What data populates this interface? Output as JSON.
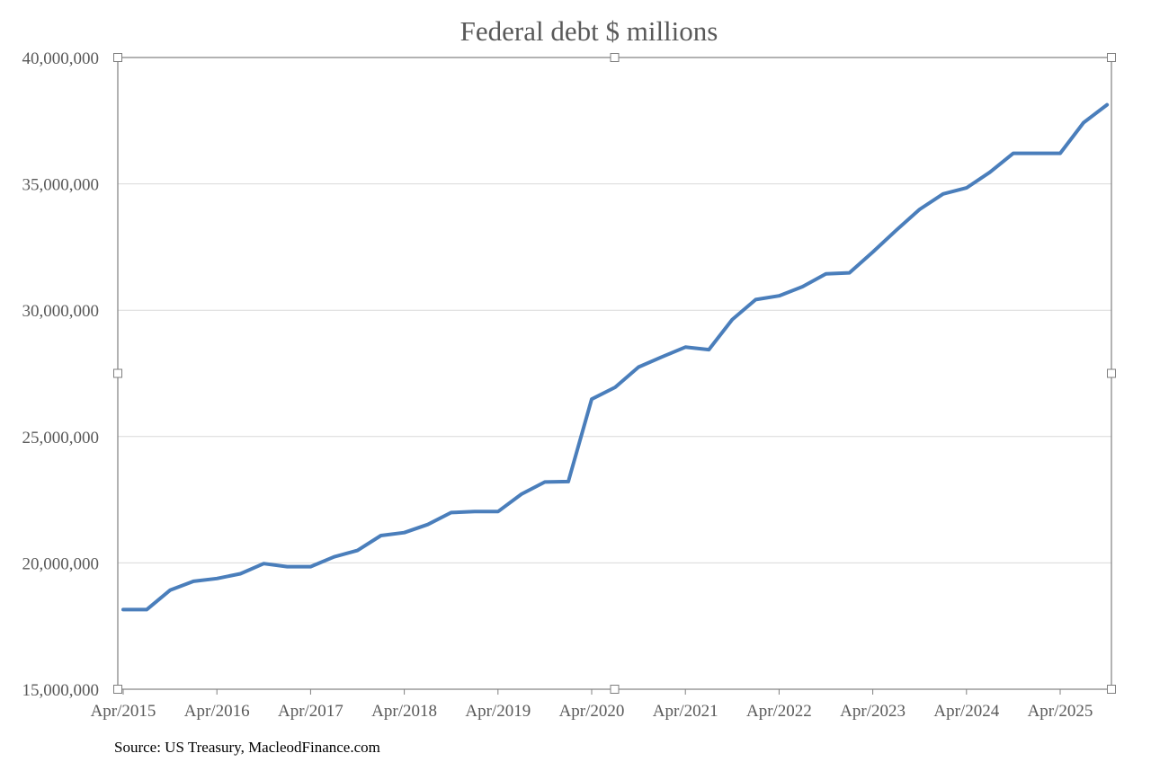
{
  "chart_data": {
    "type": "line",
    "title": "Federal debt $ millions",
    "xlabel": "",
    "ylabel": "",
    "ylim": [
      15000000,
      40000000
    ],
    "y_ticks": [
      15000000,
      20000000,
      25000000,
      30000000,
      35000000,
      40000000
    ],
    "y_tick_labels": [
      "15,000,000",
      "20,000,000",
      "25,000,000",
      "30,000,000",
      "35,000,000",
      "40,000,000"
    ],
    "x_tick_labels": [
      "Apr/2015",
      "Apr/2016",
      "Apr/2017",
      "Apr/2018",
      "Apr/2019",
      "Apr/2020",
      "Apr/2021",
      "Apr/2022",
      "Apr/2023",
      "Apr/2024",
      "Apr/2025"
    ],
    "x_step": "quarter",
    "series_color": "#4a7ebb",
    "grid": true,
    "series": [
      {
        "name": "Federal debt",
        "values": [
          18150000,
          18150000,
          18920000,
          19270000,
          19380000,
          19570000,
          19970000,
          19850000,
          19850000,
          20240000,
          20490000,
          21080000,
          21200000,
          21520000,
          21990000,
          22030000,
          22030000,
          22720000,
          23200000,
          23220000,
          26480000,
          26950000,
          27750000,
          28150000,
          28540000,
          28440000,
          29630000,
          30420000,
          30570000,
          30930000,
          31440000,
          31480000,
          32300000,
          33160000,
          33990000,
          34600000,
          34840000,
          35460000,
          36210000,
          36210000,
          36210000,
          37420000,
          38130000
        ]
      }
    ]
  },
  "source": "Source: US Treasury, MacleodFinance.com"
}
